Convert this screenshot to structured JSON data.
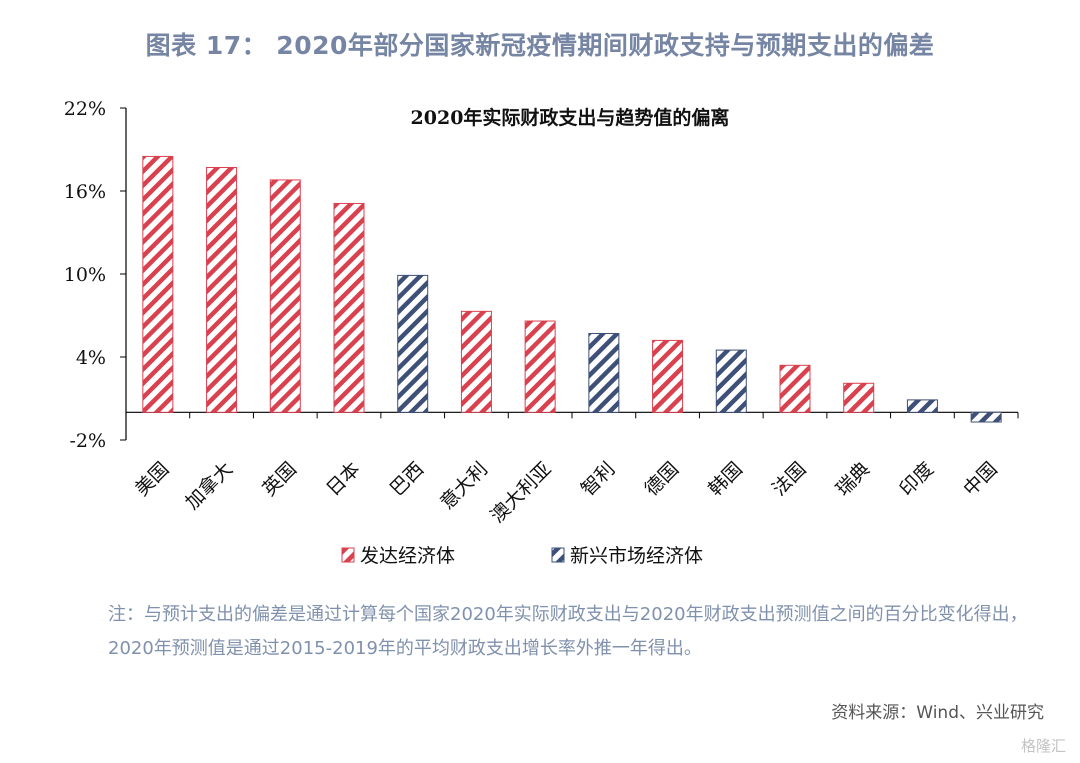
{
  "figure_title": "图表 17： 2020年部分国家新冠疫情期间财政支持与预期支出的偏差",
  "note": "注：与预计支出的偏差是通过计算每个国家2020年实际财政支出与2020年财政支出预测值之间的百分比变化得出，2020年预测值是通过2015-2019年的平均财政支出增长率外推一年得出。",
  "source": "资料来源：Wind、兴业研究",
  "watermark": "格隆汇",
  "colors": {
    "developed": "#d9414f",
    "emerging": "#3e5077",
    "title": "#7585a3"
  },
  "chart_data": {
    "type": "bar",
    "title": "2020年实际财政支出与趋势值的偏离",
    "xlabel": "",
    "ylabel": "",
    "ylim": [
      -2,
      22
    ],
    "yticks": [
      -2,
      4,
      10,
      16,
      22
    ],
    "ytick_labels": [
      "-2%",
      "4%",
      "10%",
      "16%",
      "22%"
    ],
    "unit": "%",
    "categories": [
      "美国",
      "加拿大",
      "英国",
      "日本",
      "巴西",
      "意大利",
      "澳大利亚",
      "智利",
      "德国",
      "韩国",
      "法国",
      "瑞典",
      "印度",
      "中国"
    ],
    "values": [
      18.5,
      17.7,
      16.8,
      15.1,
      9.9,
      7.3,
      6.6,
      5.7,
      5.2,
      4.5,
      3.4,
      2.1,
      0.9,
      -0.7
    ],
    "groups": [
      "developed",
      "developed",
      "developed",
      "developed",
      "emerging",
      "developed",
      "developed",
      "emerging",
      "developed",
      "emerging",
      "developed",
      "developed",
      "emerging",
      "emerging"
    ],
    "legend": [
      {
        "key": "developed",
        "label": "发达经济体"
      },
      {
        "key": "emerging",
        "label": "新兴市场经济体"
      }
    ],
    "legend_position": "bottom",
    "grid": false
  }
}
